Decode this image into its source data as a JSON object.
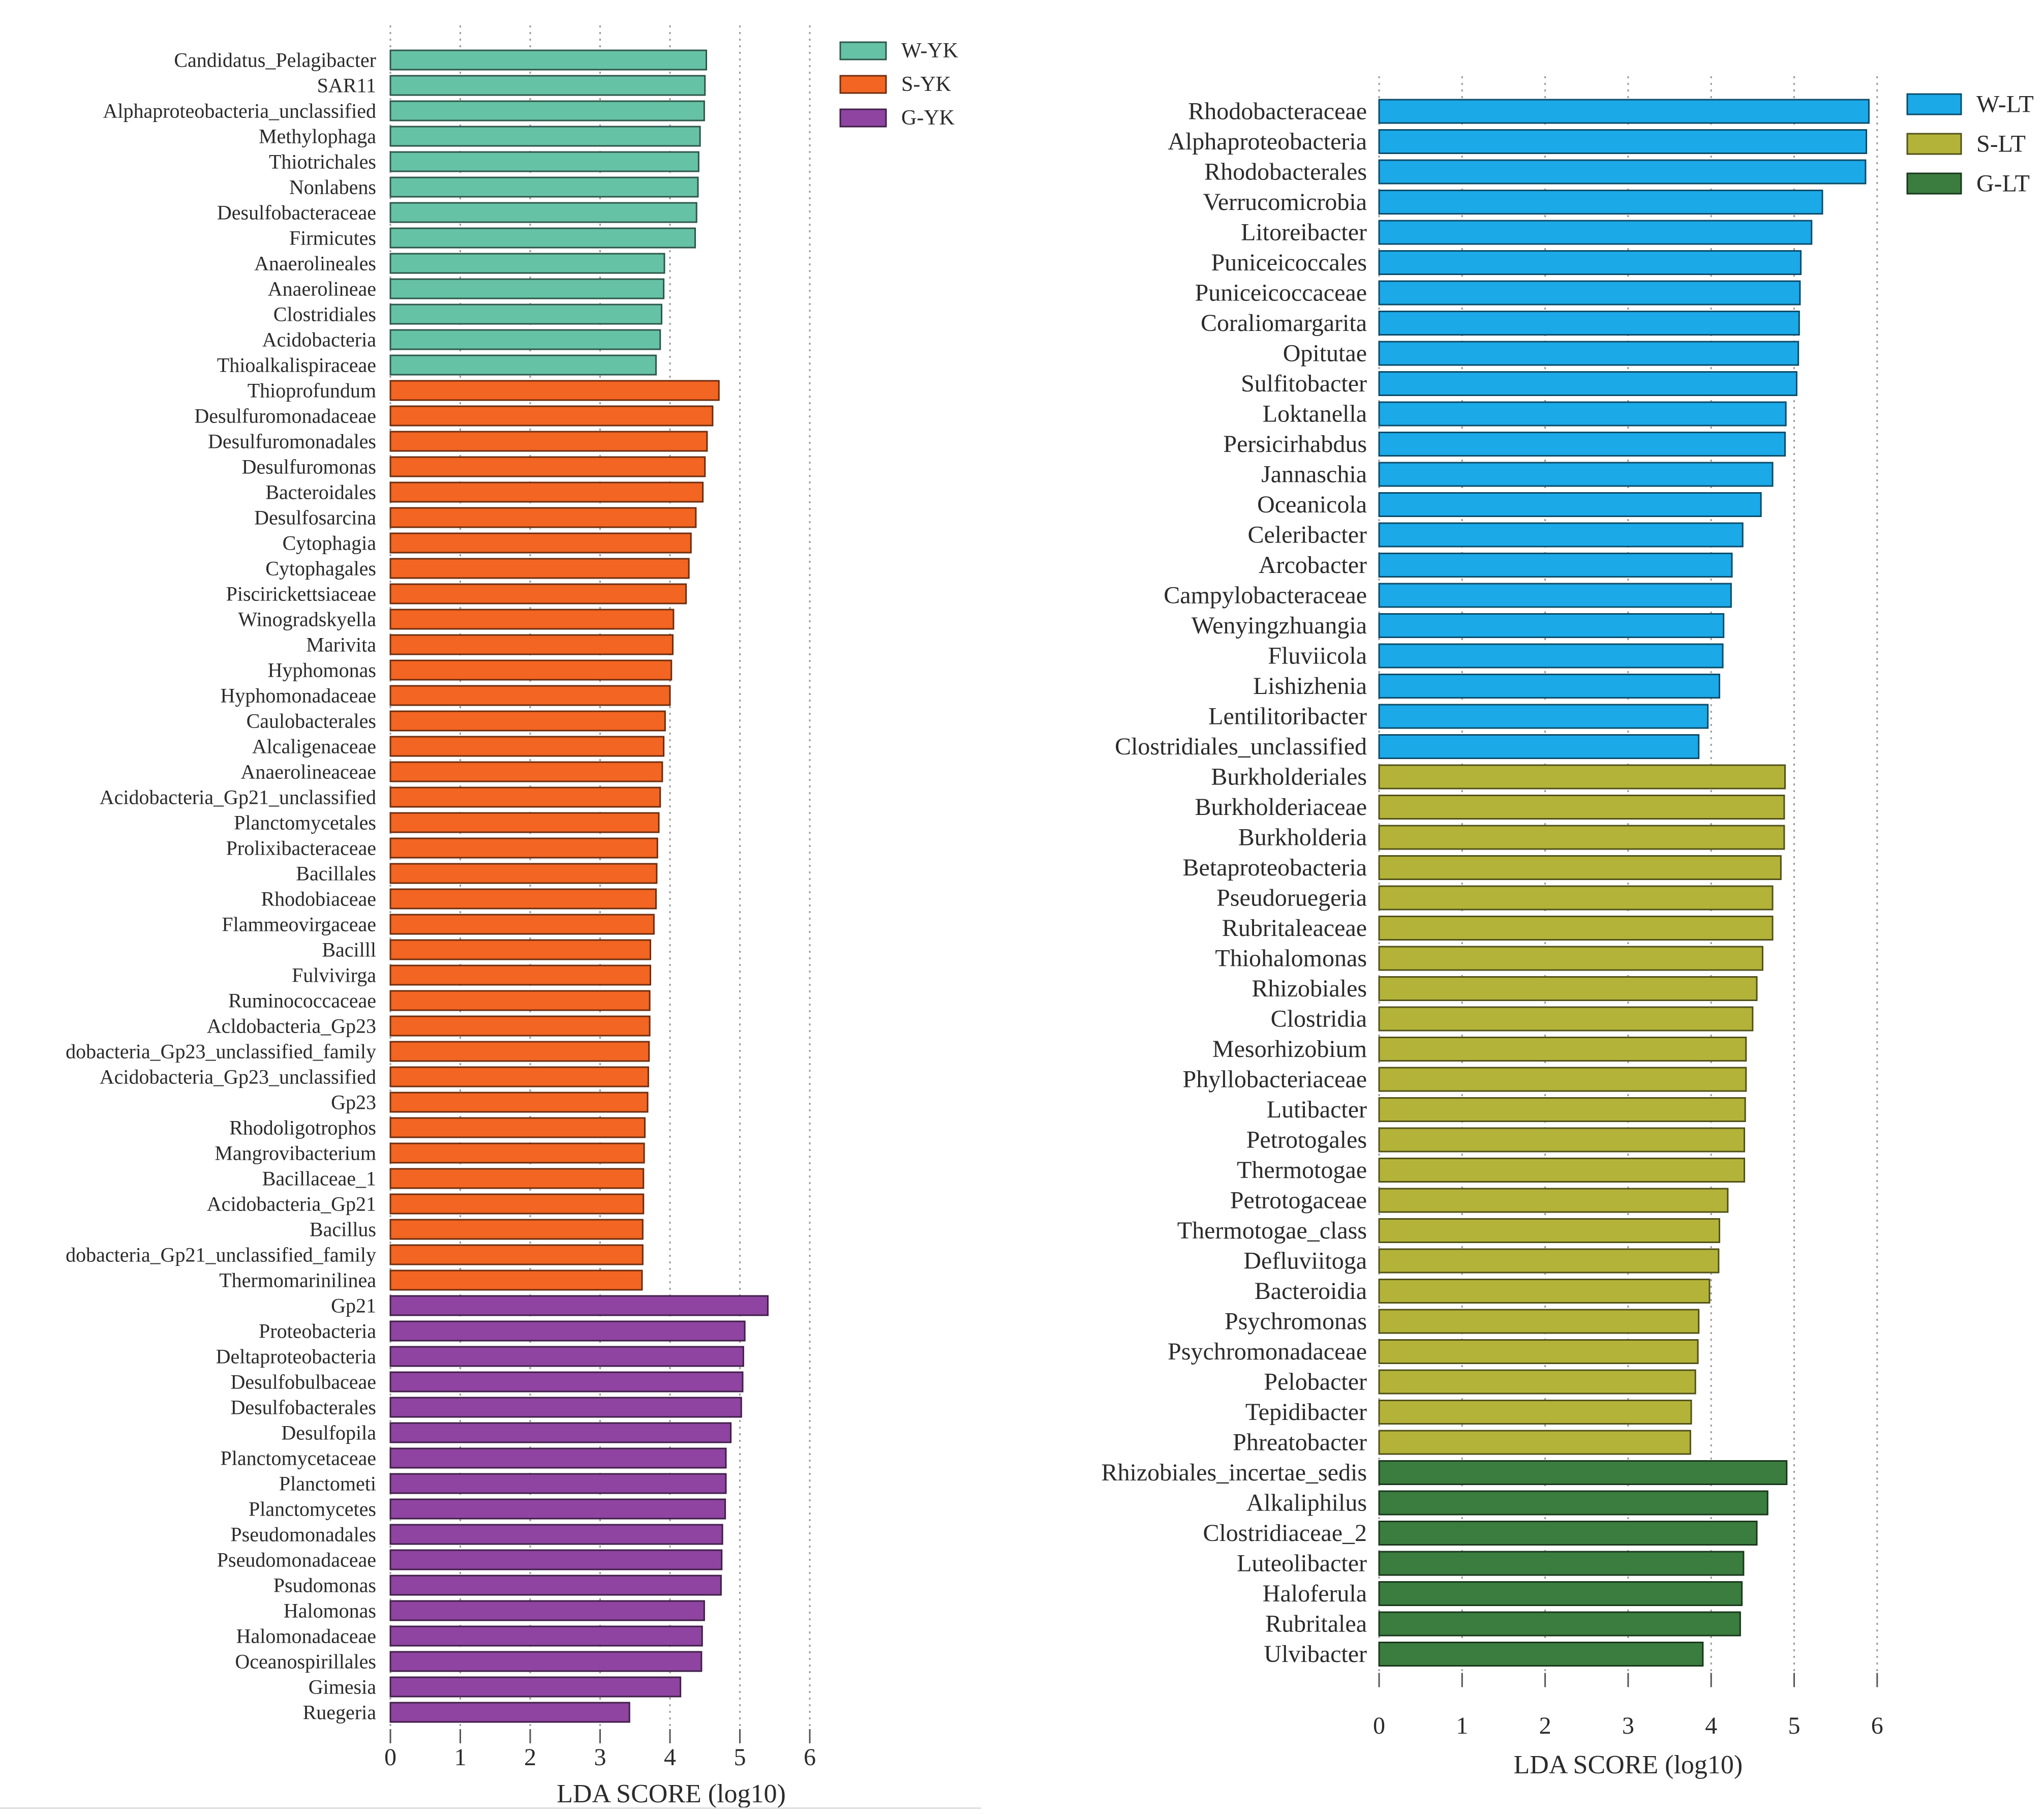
{
  "chart_data": [
    {
      "type": "bar",
      "orientation": "horizontal",
      "xlabel": "LDA SCORE (log10)",
      "xlim": [
        0,
        6
      ],
      "xticks": [
        "0",
        "1",
        "2",
        "3",
        "4",
        "5",
        "6"
      ],
      "grid": "vertical dotted",
      "legend_position": "top-right",
      "series": [
        {
          "name": "W-YK",
          "color": "#66c2a5",
          "categories": [
            "Candidatus_Pelagibacter",
            "SAR11",
            "Alphaproteobacteria_unclassified",
            "Methylophaga",
            "Thiotrichales",
            "Nonlabens",
            "Desulfobacteraceae",
            "Firmicutes",
            "Anaerolineales",
            "Anaerolineae",
            "Clostridiales",
            "Acidobacteria",
            "Thioalkalispiraceae"
          ],
          "values": [
            4.52,
            4.5,
            4.49,
            4.43,
            4.41,
            4.4,
            4.38,
            4.36,
            3.92,
            3.91,
            3.88,
            3.86,
            3.8
          ]
        },
        {
          "name": "S-YK",
          "color": "#f26522",
          "categories": [
            "Thioprofundum",
            "Desulfuromonadaceae",
            "Desulfuromonadales",
            "Desulfuromonas",
            "Bacteroidales",
            "Desulfosarcina",
            "Cytophagia",
            "Cytophagales",
            "Piscirickettsiaceae",
            "Winogradskyella",
            "Marivita",
            "Hyphomonas",
            "Hyphomonadaceae",
            "Caulobacterales",
            "Alcaligenaceae",
            "Anaerolineaceae",
            "Acidobacteria_Gp21_unclassified",
            "Planctomycetales",
            "Prolixibacteraceae",
            "Bacillales",
            "Rhodobiaceae",
            "Flammeovirgaceae",
            "Bacilll",
            "Fulvivirga",
            "Ruminococcaceae",
            "Acldobacteria_Gp23",
            "dobacteria_Gp23_unclassified_family",
            "Acidobacteria_Gp23_unclassified",
            "Gp23",
            "Rhodoligotrophos",
            "Mangrovibacterium",
            "Bacillaceae_1",
            "Acidobacteria_Gp21",
            "Bacillus",
            "dobacteria_Gp21_unclassified_family",
            "Thermomarinilinea"
          ],
          "values": [
            4.7,
            4.61,
            4.53,
            4.5,
            4.47,
            4.37,
            4.3,
            4.27,
            4.23,
            4.05,
            4.04,
            4.02,
            4.0,
            3.93,
            3.91,
            3.89,
            3.86,
            3.84,
            3.82,
            3.81,
            3.8,
            3.77,
            3.72,
            3.72,
            3.71,
            3.71,
            3.7,
            3.69,
            3.68,
            3.64,
            3.63,
            3.62,
            3.62,
            3.61,
            3.61,
            3.6
          ]
        },
        {
          "name": "G-YK",
          "color": "#8e44a0",
          "categories": [
            "Gp21",
            "Proteobacteria",
            "Deltaproteobacteria",
            "Desulfobulbaceae",
            "Desulfobacterales",
            "Desulfopila",
            "Planctomycetaceae",
            "Planctometi",
            "Planctomycetes",
            "Pseudomonadales",
            "Pseudomonadaceae",
            "Psudomonas",
            "Halomonas",
            "Halomonadaceae",
            "Oceanospirillales",
            "Gimesia",
            "Ruegeria"
          ],
          "values": [
            5.4,
            5.07,
            5.05,
            5.04,
            5.02,
            4.87,
            4.8,
            4.8,
            4.79,
            4.75,
            4.74,
            4.73,
            4.49,
            4.46,
            4.45,
            4.15,
            3.42
          ]
        }
      ]
    },
    {
      "type": "bar",
      "orientation": "horizontal",
      "xlabel": "LDA SCORE (log10)",
      "xlim": [
        0,
        6
      ],
      "xticks": [
        "0",
        "1",
        "2",
        "3",
        "4",
        "5",
        "6"
      ],
      "grid": "vertical dotted",
      "legend_position": "top-right",
      "series": [
        {
          "name": "W-LT",
          "color": "#1ba9e8",
          "categories": [
            "Rhodobacteraceae",
            "Alphaproteobacteria",
            "Rhodobacterales",
            "Verrucomicrobia",
            "Litoreibacter",
            "Puniceicoccales",
            "Puniceicoccaceae",
            "Coraliomargarita",
            "Opitutae",
            "Sulfitobacter",
            "Loktanella",
            "Persicirhabdus",
            "Jannaschia",
            "Oceanicola",
            "Celeribacter",
            "Arcobacter",
            "Campylobacteraceae",
            "Wenyingzhuangia",
            "Fluviicola",
            "Lishizhenia",
            "Lentilitoribacter",
            "Clostridiales_unclassified"
          ],
          "values": [
            5.9,
            5.87,
            5.86,
            5.34,
            5.21,
            5.08,
            5.07,
            5.06,
            5.05,
            5.03,
            4.9,
            4.89,
            4.74,
            4.6,
            4.38,
            4.25,
            4.24,
            4.15,
            4.14,
            4.1,
            3.96,
            3.85
          ]
        },
        {
          "name": "S-LT",
          "color": "#b3b33a",
          "categories": [
            "Burkholderiales",
            "Burkholderiaceae",
            "Burkholderia",
            "Betaproteobacteria",
            "Pseudoruegeria",
            "Rubritaleaceae",
            "Thiohalomonas",
            "Rhizobiales",
            "Clostridia",
            "Mesorhizobium",
            "Phyllobacteriaceae",
            "Lutibacter",
            "Petrotogales",
            "Thermotogae",
            "Petrotogaceae",
            "Thermotogae_class",
            "Defluviitoga",
            "Bacteroidia",
            "Psychromonas",
            "Psychromonadaceae",
            "Pelobacter",
            "Tepidibacter",
            "Phreatobacter"
          ],
          "values": [
            4.89,
            4.88,
            4.88,
            4.84,
            4.74,
            4.74,
            4.62,
            4.55,
            4.5,
            4.42,
            4.42,
            4.41,
            4.4,
            4.4,
            4.2,
            4.1,
            4.09,
            3.98,
            3.85,
            3.84,
            3.81,
            3.76,
            3.75
          ]
        },
        {
          "name": "G-LT",
          "color": "#3a7d3f",
          "categories": [
            "Rhizobiales_incertae_sedis",
            "Alkaliphilus",
            "Clostridiaceae_2",
            "Luteolibacter",
            "Haloferula",
            "Rubritalea",
            "Ulvibacter"
          ],
          "values": [
            4.91,
            4.68,
            4.55,
            4.39,
            4.37,
            4.35,
            3.9
          ]
        }
      ]
    }
  ]
}
